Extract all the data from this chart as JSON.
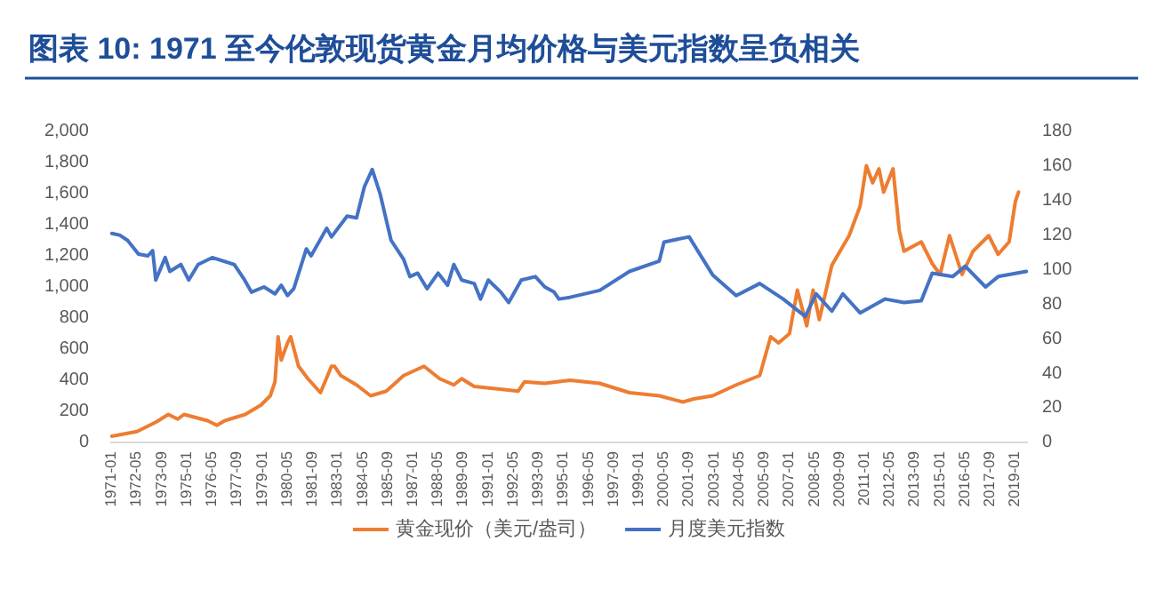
{
  "chart_data": {
    "type": "line",
    "title": "图表 10: 1971 至今伦敦现货黄金月均价格与美元指数呈负相关",
    "xlim": [
      "1970-12",
      "2019-09"
    ],
    "xticks": [
      "1971-01",
      "1972-05",
      "1973-09",
      "1975-01",
      "1976-05",
      "1977-09",
      "1979-01",
      "1980-05",
      "1981-09",
      "1983-01",
      "1984-05",
      "1985-09",
      "1987-01",
      "1988-05",
      "1989-09",
      "1991-01",
      "1992-05",
      "1993-09",
      "1995-01",
      "1996-05",
      "1997-09",
      "1999-01",
      "2000-05",
      "2001-09",
      "2003-01",
      "2004-05",
      "2005-09",
      "2007-01",
      "2008-05",
      "2009-09",
      "2011-01",
      "2012-05",
      "2013-09",
      "2015-01",
      "2016-05",
      "2017-09",
      "2019-01"
    ],
    "ylim": [
      0,
      2000
    ],
    "yticks": [
      {
        "value": 0,
        "label": "0"
      },
      {
        "value": 200,
        "label": "200"
      },
      {
        "value": 400,
        "label": "400"
      },
      {
        "value": 600,
        "label": "600"
      },
      {
        "value": 800,
        "label": "800"
      },
      {
        "value": 1000,
        "label": "1,000"
      },
      {
        "value": 1200,
        "label": "1,200"
      },
      {
        "value": 1400,
        "label": "1,400"
      },
      {
        "value": 1600,
        "label": "1,600"
      },
      {
        "value": 1800,
        "label": "1,800"
      },
      {
        "value": 2000,
        "label": "2,000"
      }
    ],
    "y2lim": [
      0,
      180
    ],
    "y2ticks": [
      0,
      20,
      40,
      60,
      80,
      100,
      120,
      140,
      160,
      180
    ],
    "grid": false,
    "legend": "bottom",
    "marker": "none",
    "line_style": "solid",
    "series": [
      {
        "name": "黄金现价（美元/盎司）",
        "color": "#ed7d31",
        "x": [
          "1971-01",
          "1972-05",
          "1973-05",
          "1974-01",
          "1974-07",
          "1974-11",
          "1976-02",
          "1976-08",
          "1977-01",
          "1978-02",
          "1978-12",
          "1979-06",
          "1979-09",
          "1979-11",
          "1980-01",
          "1980-05",
          "1980-07",
          "1980-12",
          "1981-06",
          "1982-02",
          "1982-09",
          "1982-11",
          "1983-03",
          "1984-01",
          "1984-10",
          "1985-08",
          "1986-07",
          "1987-08",
          "1988-06",
          "1989-03",
          "1989-08",
          "1990-04",
          "1991-11",
          "1992-08",
          "1992-12",
          "1994-01",
          "1995-05",
          "1996-12",
          "1998-07",
          "2000-02",
          "2001-05",
          "2001-12",
          "2002-12",
          "2004-03",
          "2005-06",
          "2006-01",
          "2006-06",
          "2007-01",
          "2007-06",
          "2007-12",
          "2008-04",
          "2008-08",
          "2009-04",
          "2010-03",
          "2010-10",
          "2011-02",
          "2011-06",
          "2011-10",
          "2012-01",
          "2012-07",
          "2012-11",
          "2013-02",
          "2014-01",
          "2014-08",
          "2015-01",
          "2015-07",
          "2016-03",
          "2016-10",
          "2017-08",
          "2018-02",
          "2018-09",
          "2019-01",
          "2019-03"
        ],
        "values": [
          40,
          70,
          130,
          180,
          150,
          180,
          140,
          110,
          140,
          180,
          240,
          300,
          390,
          680,
          530,
          640,
          680,
          490,
          410,
          320,
          490,
          490,
          430,
          370,
          300,
          330,
          430,
          490,
          410,
          370,
          410,
          360,
          340,
          330,
          390,
          380,
          400,
          380,
          320,
          300,
          260,
          280,
          300,
          370,
          430,
          680,
          640,
          700,
          980,
          750,
          980,
          790,
          1140,
          1330,
          1520,
          1780,
          1670,
          1760,
          1610,
          1760,
          1360,
          1230,
          1290,
          1150,
          1080,
          1330,
          1080,
          1230,
          1330,
          1210,
          1290,
          1550,
          1610
        ]
      },
      {
        "name": "月度美元指数",
        "color": "#4472c4",
        "axis": "y2",
        "x": [
          "1971-01",
          "1971-06",
          "1971-11",
          "1972-06",
          "1972-12",
          "1973-03",
          "1973-04",
          "1973-05",
          "1973-11",
          "1974-02",
          "1974-09",
          "1975-02",
          "1975-08",
          "1976-05",
          "1977-07",
          "1978-01",
          "1978-06",
          "1979-02",
          "1979-09",
          "1980-01",
          "1980-05",
          "1980-09",
          "1981-05",
          "1981-08",
          "1982-06",
          "1982-09",
          "1983-07",
          "1984-01",
          "1984-06",
          "1984-11",
          "1985-04",
          "1985-11",
          "1986-07",
          "1986-11",
          "1987-04",
          "1987-10",
          "1988-05",
          "1988-11",
          "1989-03",
          "1989-08",
          "1990-04",
          "1990-08",
          "1991-01",
          "1991-09",
          "1992-02",
          "1992-10",
          "1993-07",
          "1994-01",
          "1994-07",
          "1994-10",
          "1995-05",
          "1996-12",
          "1998-07",
          "2000-02",
          "2000-05",
          "2001-09",
          "2002-12",
          "2004-03",
          "2005-06",
          "2006-09",
          "2007-11",
          "2008-06",
          "2009-04",
          "2009-11",
          "2010-10",
          "2012-02",
          "2013-02",
          "2014-01",
          "2014-08",
          "2015-09",
          "2016-05",
          "2017-06",
          "2018-02",
          "2019-08"
        ],
        "values": [
          121,
          120,
          117,
          109,
          108,
          111,
          103,
          94,
          107,
          99,
          103,
          94,
          103,
          107,
          103,
          95,
          87,
          90,
          86,
          91,
          85,
          89,
          112,
          108,
          124,
          119,
          131,
          130,
          148,
          158,
          144,
          117,
          106,
          96,
          98,
          89,
          98,
          91,
          103,
          94,
          92,
          83,
          94,
          87,
          81,
          94,
          96,
          90,
          87,
          83,
          84,
          88,
          99,
          105,
          116,
          119,
          97,
          85,
          92,
          83,
          73,
          86,
          76,
          86,
          75,
          83,
          81,
          82,
          98,
          96,
          102,
          90,
          96,
          99
        ]
      }
    ]
  }
}
